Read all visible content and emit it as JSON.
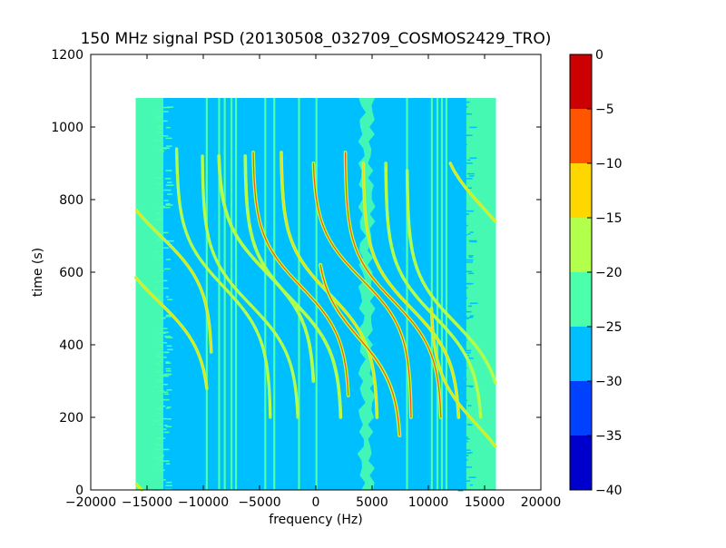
{
  "chart_data": {
    "type": "heatmap",
    "title": "150 MHz signal PSD (20130508_032709_COSMOS2429_TRO)",
    "xlabel": "frequency (Hz)",
    "ylabel": "time (s)",
    "xlim": [
      -20000,
      20000
    ],
    "ylim": [
      0,
      1200
    ],
    "x_ticks": [
      -20000,
      -15000,
      -10000,
      -5000,
      0,
      5000,
      10000,
      15000,
      20000
    ],
    "y_ticks": [
      0,
      200,
      400,
      600,
      800,
      1000,
      1200
    ],
    "data_extent": {
      "x": [
        -16000,
        16000
      ],
      "y": [
        0,
        1080
      ]
    },
    "background_level": -28,
    "edge_band_level": -24,
    "colorbar": {
      "levels": [
        0,
        -5,
        -10,
        -15,
        -20,
        -25,
        -30,
        -35,
        -40
      ],
      "bands": [
        {
          "from": -5,
          "to": 0,
          "color": "#cc0000"
        },
        {
          "from": -10,
          "to": -5,
          "color": "#ff5500"
        },
        {
          "from": -15,
          "to": -10,
          "color": "#ffd700"
        },
        {
          "from": -20,
          "to": -15,
          "color": "#b2ff4c"
        },
        {
          "from": -25,
          "to": -20,
          "color": "#4cffaa"
        },
        {
          "from": -30,
          "to": -25,
          "color": "#00bfff"
        },
        {
          "from": -35,
          "to": -30,
          "color": "#0040ff"
        },
        {
          "from": -40,
          "to": -35,
          "color": "#0000cc"
        }
      ]
    },
    "vertical_lines": [
      {
        "f": -9700,
        "level": -24
      },
      {
        "f": -8600,
        "level": -24
      },
      {
        "f": -8100,
        "level": -22
      },
      {
        "f": -7500,
        "level": -22
      },
      {
        "f": -7100,
        "level": -24
      },
      {
        "f": -4500,
        "level": -24
      },
      {
        "f": -3700,
        "level": -24
      },
      {
        "f": -1500,
        "level": -22
      },
      {
        "f": 50,
        "level": -22
      },
      {
        "f": 8100,
        "level": -24
      },
      {
        "f": 10300,
        "level": -24
      },
      {
        "f": 10800,
        "level": -22
      },
      {
        "f": 11200,
        "level": -24
      },
      {
        "f": 11600,
        "level": -24
      }
    ],
    "doppler_traces": [
      {
        "f0": -14000,
        "t0": 520,
        "amp": 4600,
        "width": 90,
        "t_start": 280,
        "t_end": 860,
        "level": -14
      },
      {
        "f0": -13800,
        "t0": 700,
        "amp": 4600,
        "width": 90,
        "t_start": 380,
        "t_end": 1080,
        "level": -14
      },
      {
        "f0": -14800,
        "t0": -20,
        "amp": 4600,
        "width": 90,
        "t_start": 0,
        "t_end": 80,
        "level": -14
      },
      {
        "f0": -8200,
        "t0": 560,
        "amp": 4200,
        "width": 80,
        "t_start": 200,
        "t_end": 940,
        "level": -20
      },
      {
        "f0": -5800,
        "t0": 510,
        "amp": 4300,
        "width": 80,
        "t_start": 200,
        "t_end": 920,
        "level": -18
      },
      {
        "f0": -4400,
        "t0": 600,
        "amp": 4300,
        "width": 100,
        "t_start": 300,
        "t_end": 920,
        "level": -16
      },
      {
        "f0": -2000,
        "t0": 520,
        "amp": 4300,
        "width": 100,
        "t_start": 200,
        "t_end": 920,
        "level": -16
      },
      {
        "f0": -1300,
        "t0": 560,
        "amp": 4300,
        "width": 110,
        "t_start": 260,
        "t_end": 930,
        "level": -10
      },
      {
        "f0": 1200,
        "t0": 540,
        "amp": 4300,
        "width": 100,
        "t_start": 200,
        "t_end": 930,
        "level": -12
      },
      {
        "f0": 4100,
        "t0": 580,
        "amp": 4400,
        "width": 110,
        "t_start": 200,
        "t_end": 900,
        "level": -10
      },
      {
        "f0": 3800,
        "t0": 420,
        "amp": 3800,
        "width": 130,
        "t_start": 150,
        "t_end": 620,
        "level": -6
      },
      {
        "f0": 6900,
        "t0": 520,
        "amp": 4300,
        "width": 110,
        "t_start": 200,
        "t_end": 930,
        "level": -8
      },
      {
        "f0": 8500,
        "t0": 500,
        "amp": 4300,
        "width": 100,
        "t_start": 200,
        "t_end": 900,
        "level": -14
      },
      {
        "f0": 10500,
        "t0": 480,
        "amp": 4300,
        "width": 90,
        "t_start": 200,
        "t_end": 900,
        "level": -18
      },
      {
        "f0": 12400,
        "t0": 460,
        "amp": 4300,
        "width": 90,
        "t_start": 150,
        "t_end": 880,
        "level": -18
      },
      {
        "f0": 14300,
        "t0": 180,
        "amp": 4100,
        "width": 90,
        "t_start": 0,
        "t_end": 500,
        "level": -14
      },
      {
        "f0": 14800,
        "t0": 780,
        "amp": 4100,
        "width": 90,
        "t_start": 580,
        "t_end": 900,
        "level": -14
      }
    ],
    "noise_band": {
      "f_center": 4500,
      "t_start": 0,
      "t_end": 1080,
      "width": 900,
      "level": -22
    }
  }
}
